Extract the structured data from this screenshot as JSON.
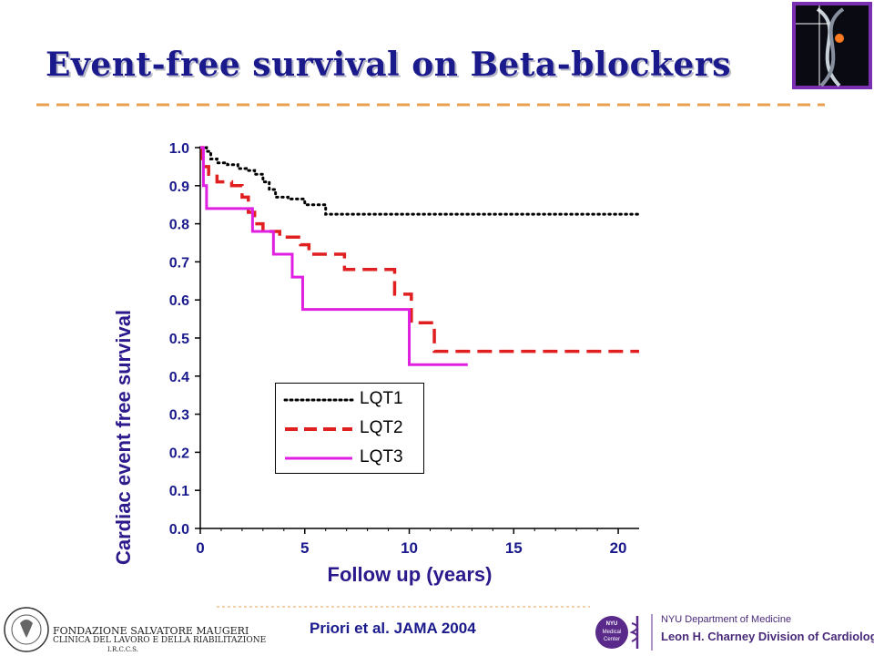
{
  "slide": {
    "title": "Event-free survival on Beta-blockers",
    "citation": "Priori et al. JAMA 2004"
  },
  "logos": {
    "left_name": "FONDAZIONE SALVATORE MAUGERI",
    "left_sub": "CLINICA DEL LAVORO E DELLA RIABILITAZIONE",
    "left_irccs": "I.R.C.C.S.",
    "right_badge": "NYU Medical Center",
    "right_dept": "NYU Department of Medicine",
    "right_division": "Leon H. Charney Division of Cardiology"
  },
  "colors": {
    "title": "#1a1a8c",
    "axis_title": "#2b1a8c",
    "rule": "#e8a050",
    "LQT1": "#000000",
    "LQT2": "#e02020",
    "LQT3": "#e020e0"
  },
  "chart_data": {
    "type": "line",
    "step": true,
    "title": "",
    "xlabel": "Follow up (years)",
    "ylabel": "Cardiac event free survival",
    "xlim": [
      0,
      21
    ],
    "ylim": [
      0,
      1
    ],
    "xticks": [
      0,
      5,
      10,
      15,
      20
    ],
    "xtick_labels": [
      "0",
      "5",
      "10",
      "15",
      "20"
    ],
    "yticks": [
      0,
      0.1,
      0.2,
      0.3,
      0.4,
      0.5,
      0.6,
      0.7,
      0.8,
      0.9,
      1.0
    ],
    "ytick_labels": [
      "0.0",
      "0.1",
      "0.2",
      "0.3",
      "0.4",
      "0.5",
      "0.6",
      "0.7",
      "0.8",
      "0.9",
      "1.0"
    ],
    "grid": false,
    "legend_position": "lower-left inside plot",
    "series": [
      {
        "name": "LQT1",
        "style": "dotted",
        "points": [
          [
            0,
            1.0
          ],
          [
            0.3,
            0.99
          ],
          [
            0.5,
            0.97
          ],
          [
            0.8,
            0.96
          ],
          [
            1.3,
            0.955
          ],
          [
            1.8,
            0.945
          ],
          [
            2.2,
            0.94
          ],
          [
            2.6,
            0.93
          ],
          [
            3.0,
            0.91
          ],
          [
            3.3,
            0.89
          ],
          [
            3.6,
            0.87
          ],
          [
            4.2,
            0.865
          ],
          [
            5.0,
            0.85
          ],
          [
            6.0,
            0.825
          ],
          [
            21,
            0.825
          ]
        ]
      },
      {
        "name": "LQT2",
        "style": "dashed",
        "points": [
          [
            0,
            1.0
          ],
          [
            0.1,
            0.95
          ],
          [
            0.4,
            0.93
          ],
          [
            0.8,
            0.91
          ],
          [
            1.5,
            0.9
          ],
          [
            2.0,
            0.87
          ],
          [
            2.3,
            0.83
          ],
          [
            2.6,
            0.8
          ],
          [
            3.0,
            0.78
          ],
          [
            3.8,
            0.765
          ],
          [
            4.8,
            0.745
          ],
          [
            5.2,
            0.72
          ],
          [
            6.9,
            0.68
          ],
          [
            9.3,
            0.615
          ],
          [
            10.1,
            0.54
          ],
          [
            11.2,
            0.465
          ],
          [
            21,
            0.465
          ]
        ]
      },
      {
        "name": "LQT3",
        "style": "solid",
        "points": [
          [
            0,
            1.0
          ],
          [
            0.15,
            0.9
          ],
          [
            0.3,
            0.84
          ],
          [
            2.5,
            0.78
          ],
          [
            3.5,
            0.72
          ],
          [
            4.4,
            0.66
          ],
          [
            4.9,
            0.575
          ],
          [
            10.0,
            0.43
          ],
          [
            12.8,
            0.43
          ]
        ]
      }
    ]
  }
}
